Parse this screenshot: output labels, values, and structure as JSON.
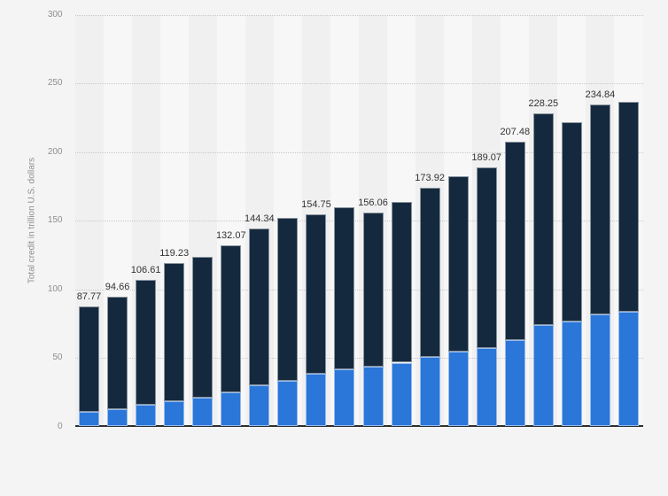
{
  "chart_data": {
    "type": "bar",
    "stacked": true,
    "title": "",
    "xlabel": "",
    "ylabel": "Total credit in trillion U.S. dollars",
    "ylim": [
      0,
      300
    ],
    "ytick_labels": [
      "0",
      "50",
      "100",
      "150",
      "200",
      "250",
      "300"
    ],
    "grid": "horizontal-dotted",
    "legend_position": "none",
    "x_tick_labels_visible": false,
    "categories": [
      "bar-01",
      "bar-02",
      "bar-03",
      "bar-04",
      "bar-05",
      "bar-06",
      "bar-07",
      "bar-08",
      "bar-09",
      "bar-10",
      "bar-11",
      "bar-12",
      "bar-13",
      "bar-14",
      "bar-15",
      "bar-16",
      "bar-17",
      "bar-18",
      "bar-19",
      "bar-20"
    ],
    "series": [
      {
        "name": "bottom-segment-blue",
        "color": "#2a76d9",
        "values": [
          10.5,
          12.9,
          16.0,
          18.5,
          20.8,
          24.9,
          30.0,
          33.3,
          38.6,
          41.9,
          43.3,
          46.5,
          50.4,
          54.7,
          57.3,
          62.7,
          74.1,
          76.3,
          81.7,
          83.4
        ]
      },
      {
        "name": "top-segment-dark-navy",
        "color": "#15293e",
        "values": [
          77.27,
          81.76,
          90.61,
          100.73,
          102.7,
          107.17,
          114.34,
          118.7,
          116.15,
          118.1,
          112.76,
          117.0,
          123.52,
          127.8,
          131.77,
          144.78,
          154.15,
          145.7,
          153.14,
          153.4
        ]
      }
    ],
    "totals": [
      87.77,
      94.66,
      106.61,
      119.23,
      123.5,
      132.07,
      144.34,
      152.0,
      154.75,
      160.0,
      156.06,
      163.5,
      173.92,
      182.5,
      189.07,
      207.48,
      228.25,
      222.0,
      234.84,
      236.8
    ],
    "value_labels": [
      "87.77",
      "94.66",
      "106.61",
      "119.23",
      null,
      "132.07",
      "144.34",
      null,
      "154.75",
      null,
      "156.06",
      null,
      "173.92",
      null,
      "189.07",
      "207.48",
      "228.25",
      null,
      "234.84",
      null
    ],
    "estimated_total_indices": [
      4,
      7,
      9,
      11,
      13,
      17,
      19
    ]
  },
  "colors": {
    "page_bg": "#f4f4f4",
    "stripe_dark": "#f0f0f0",
    "stripe_light": "#f7f7f7",
    "gridline": "#c9c9c9",
    "axis_line": "#2f2f2f",
    "tick_label": "#8e8e8e",
    "axis_title": "#8e8e8e",
    "value_label": "#333333"
  }
}
